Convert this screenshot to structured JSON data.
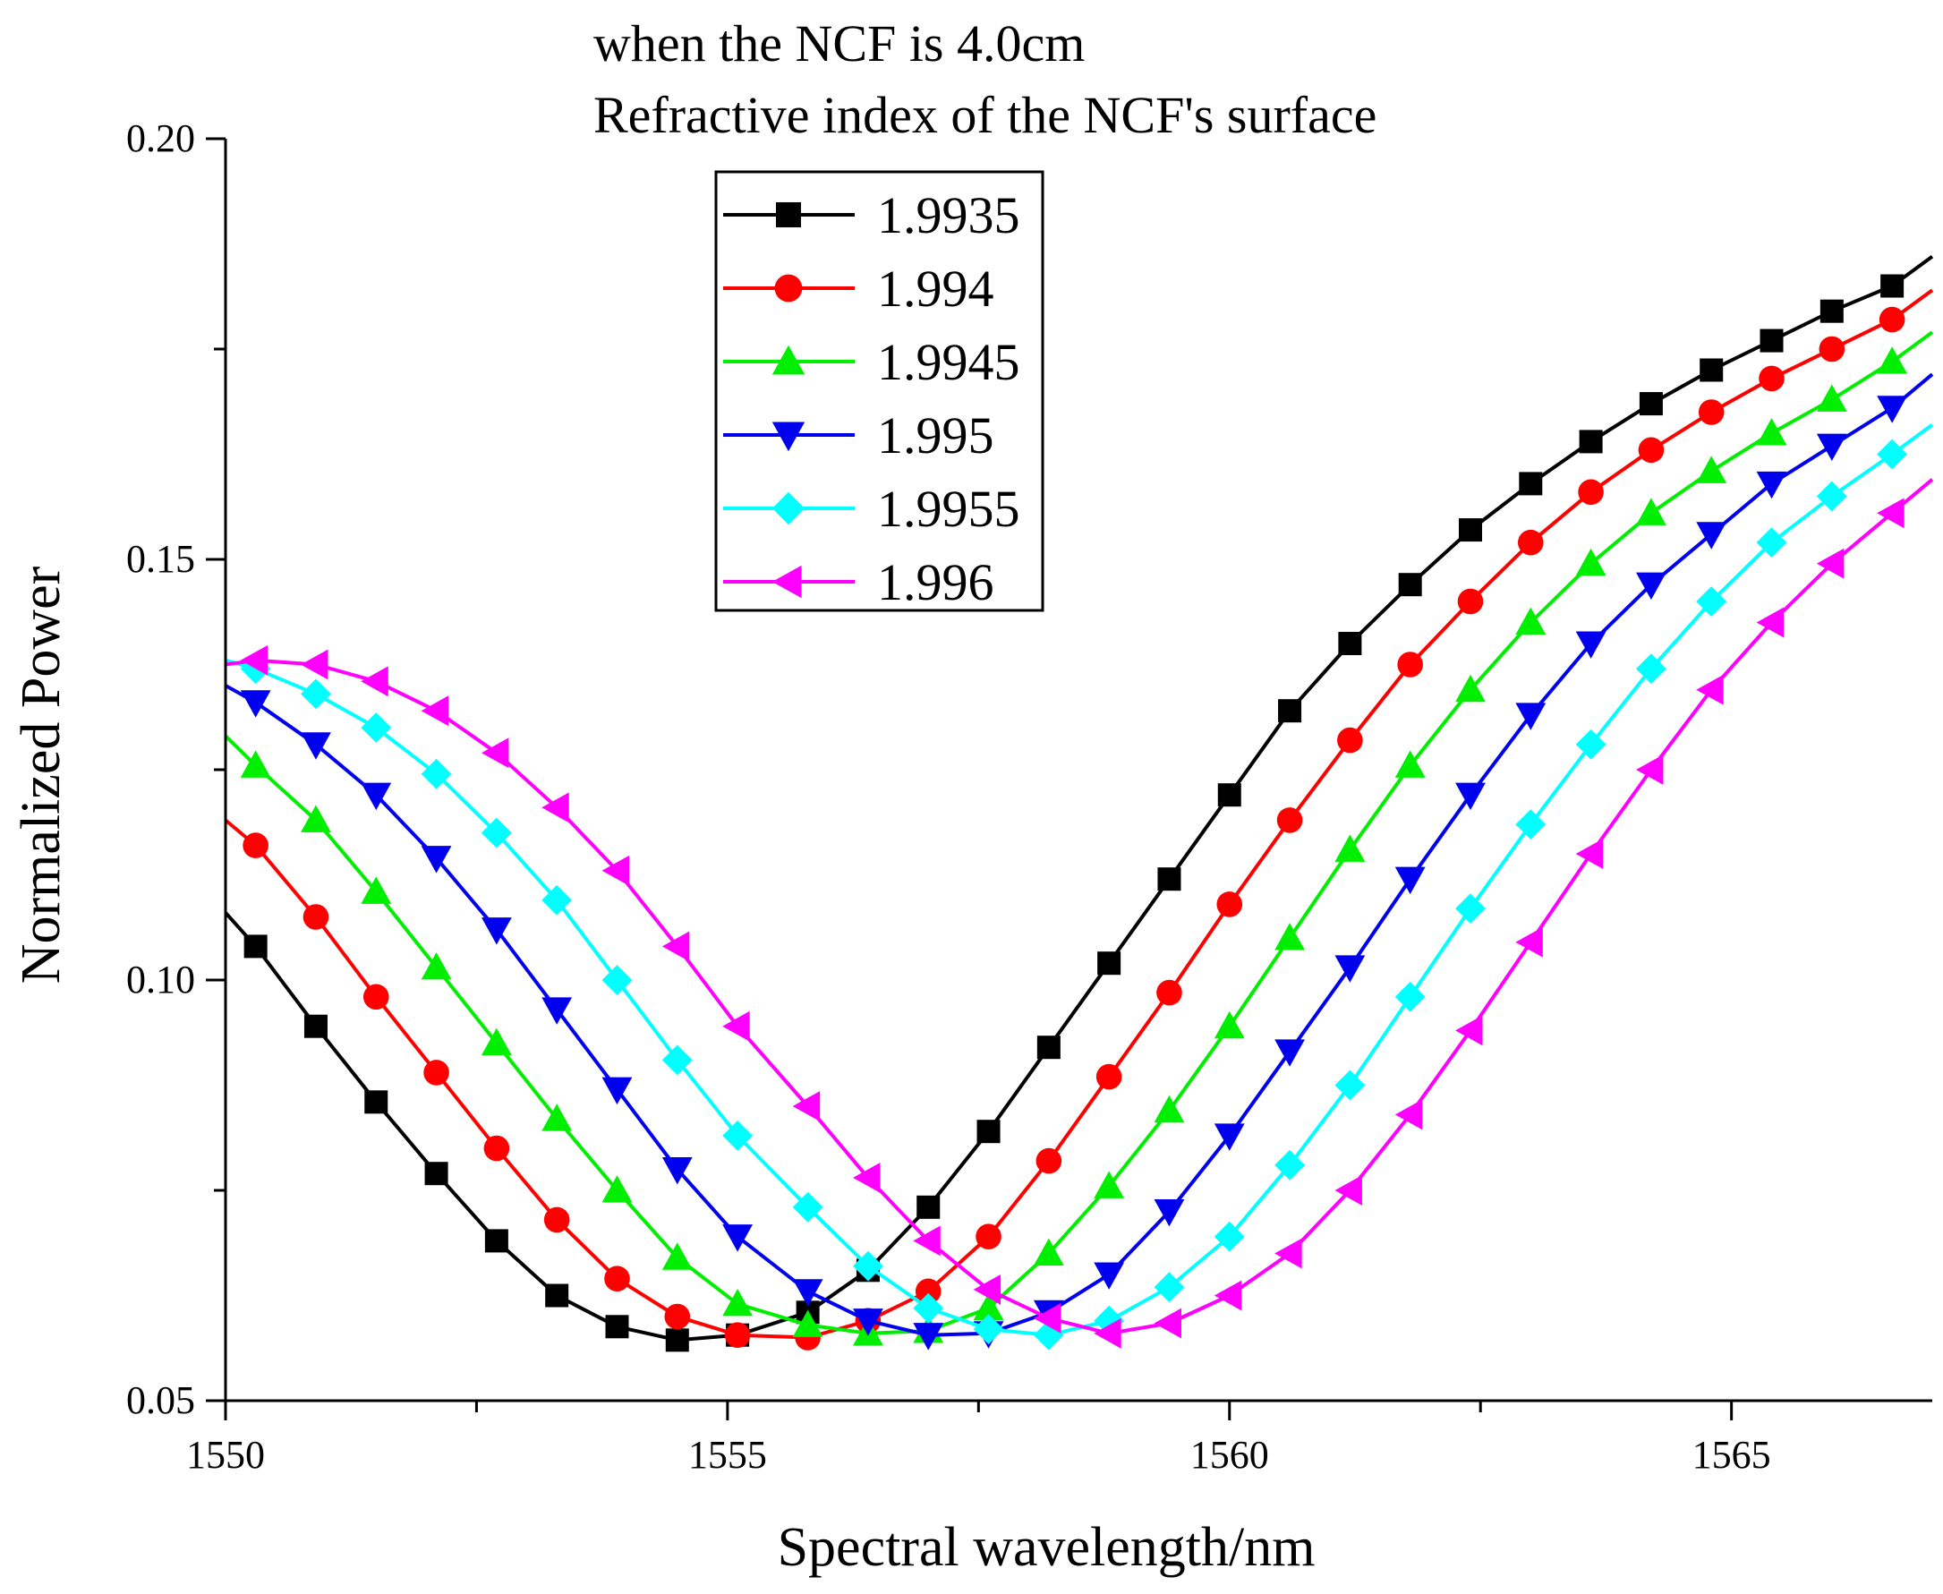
{
  "chart_data": {
    "type": "line",
    "title_lines": [
      "when the NCF is 4.0cm",
      "Refractive index of the NCF's surface"
    ],
    "xlabel": "Spectral wavelength/nm",
    "ylabel": "Normalized Power",
    "xlim": [
      1550,
      1567
    ],
    "ylim": [
      0.05,
      0.2
    ],
    "x_ticks": [
      1550,
      1555,
      1560,
      1565
    ],
    "x_tick_labels": [
      "1550",
      "1555",
      "1560",
      "1565"
    ],
    "y_ticks": [
      0.05,
      0.1,
      0.15,
      0.2
    ],
    "y_tick_labels": [
      "0.05",
      "0.10",
      "0.15",
      "0.20"
    ],
    "legend_position": "top-center",
    "x": [
      1550.3,
      1550.9,
      1551.5,
      1552.1,
      1552.7,
      1553.3,
      1553.9,
      1554.5,
      1555.1,
      1555.8,
      1556.4,
      1557.0,
      1557.6,
      1558.2,
      1558.8,
      1559.4,
      1560.0,
      1560.6,
      1561.2,
      1561.8,
      1562.4,
      1563.0,
      1563.6,
      1564.2,
      1564.8,
      1565.4,
      1566.0,
      1566.6
    ],
    "series": [
      {
        "name": "1.9935",
        "color": "#000000",
        "marker": "square",
        "start": 0.108,
        "end": 0.186,
        "values": [
          0.104,
          0.0945,
          0.0855,
          0.077,
          0.069,
          0.0625,
          0.0588,
          0.0572,
          0.0578,
          0.0605,
          0.0655,
          0.073,
          0.082,
          0.092,
          0.102,
          0.112,
          0.122,
          0.132,
          0.14,
          0.147,
          0.1535,
          0.159,
          0.164,
          0.1685,
          0.1725,
          0.176,
          0.1795,
          0.1825
        ]
      },
      {
        "name": "1.994",
        "color": "#ff0000",
        "marker": "circle",
        "start": 0.119,
        "end": 0.182,
        "values": [
          0.116,
          0.1075,
          0.098,
          0.089,
          0.08,
          0.0715,
          0.0645,
          0.06,
          0.0578,
          0.0575,
          0.0595,
          0.063,
          0.0695,
          0.0785,
          0.0885,
          0.0985,
          0.109,
          0.119,
          0.1285,
          0.1375,
          0.145,
          0.152,
          0.158,
          0.163,
          0.1675,
          0.1715,
          0.175,
          0.1785
        ]
      },
      {
        "name": "1.9945",
        "color": "#00ee00",
        "marker": "triangle-up",
        "start": 0.129,
        "end": 0.177,
        "values": [
          0.1255,
          0.119,
          0.1105,
          0.1015,
          0.0925,
          0.0835,
          0.075,
          0.067,
          0.0615,
          0.059,
          0.058,
          0.0583,
          0.061,
          0.0675,
          0.0755,
          0.0845,
          0.0945,
          0.105,
          0.1155,
          0.1255,
          0.1345,
          0.1425,
          0.1495,
          0.1555,
          0.1605,
          0.165,
          0.169,
          0.1735
        ]
      },
      {
        "name": "1.995",
        "color": "#0000ee",
        "marker": "triangle-down",
        "start": 0.135,
        "end": 0.172,
        "values": [
          0.133,
          0.128,
          0.122,
          0.1145,
          0.106,
          0.0965,
          0.087,
          0.0775,
          0.0695,
          0.063,
          0.0595,
          0.0578,
          0.058,
          0.0605,
          0.065,
          0.0725,
          0.0815,
          0.0915,
          0.1015,
          0.112,
          0.122,
          0.1315,
          0.14,
          0.147,
          0.153,
          0.159,
          0.1635,
          0.168
        ]
      },
      {
        "name": "1.9955",
        "color": "#00ffff",
        "marker": "diamond",
        "start": 0.138,
        "end": 0.166,
        "values": [
          0.137,
          0.134,
          0.13,
          0.1245,
          0.1175,
          0.1095,
          0.1,
          0.0905,
          0.0815,
          0.073,
          0.066,
          0.061,
          0.0585,
          0.0578,
          0.0595,
          0.0635,
          0.0695,
          0.078,
          0.0875,
          0.098,
          0.1085,
          0.1185,
          0.128,
          0.137,
          0.145,
          0.152,
          0.1575,
          0.1625
        ]
      },
      {
        "name": "1.996",
        "color": "#ff00ff",
        "marker": "triangle-left",
        "start": 0.1375,
        "end": 0.1595,
        "values": [
          0.138,
          0.1375,
          0.1355,
          0.132,
          0.127,
          0.1205,
          0.113,
          0.104,
          0.0945,
          0.085,
          0.0765,
          0.069,
          0.0632,
          0.0598,
          0.058,
          0.0592,
          0.0625,
          0.0675,
          0.075,
          0.084,
          0.094,
          0.1045,
          0.115,
          0.125,
          0.1345,
          0.1425,
          0.1495,
          0.1555
        ]
      }
    ]
  }
}
